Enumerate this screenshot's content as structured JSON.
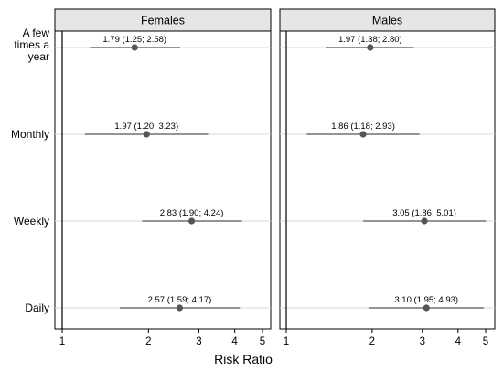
{
  "chart_data": {
    "type": "forest",
    "xlabel": "Risk Ratio",
    "x_scale": "log",
    "xlim": [
      0.95,
      5.25
    ],
    "x_ticks": [
      1,
      2,
      3,
      4,
      5
    ],
    "x_tick_labels": [
      "1",
      "2",
      "3",
      "4",
      "5"
    ],
    "categories": [
      "A few times a year",
      "Monthly",
      "Weekly",
      "Daily"
    ],
    "category_label_lines": [
      [
        "A few",
        "times a",
        "year"
      ],
      [
        "Monthly"
      ],
      [
        "Weekly"
      ],
      [
        "Daily"
      ]
    ],
    "panels": [
      {
        "title": "Females",
        "estimates": [
          {
            "rr": 1.79,
            "lo": 1.25,
            "hi": 2.58,
            "label": "1.79 (1.25; 2.58)"
          },
          {
            "rr": 1.97,
            "lo": 1.2,
            "hi": 3.23,
            "label": "1.97 (1.20; 3.23)"
          },
          {
            "rr": 2.83,
            "lo": 1.9,
            "hi": 4.24,
            "label": "2.83 (1.90; 4.24)"
          },
          {
            "rr": 2.57,
            "lo": 1.59,
            "hi": 4.17,
            "label": "2.57 (1.59; 4.17)"
          }
        ]
      },
      {
        "title": "Males",
        "estimates": [
          {
            "rr": 1.97,
            "lo": 1.38,
            "hi": 2.8,
            "label": "1.97 (1.38; 2.80)"
          },
          {
            "rr": 1.86,
            "lo": 1.18,
            "hi": 2.93,
            "label": "1.86 (1.18; 2.93)"
          },
          {
            "rr": 3.05,
            "lo": 1.86,
            "hi": 5.01,
            "label": "3.05 (1.86; 5.01)"
          },
          {
            "rr": 3.1,
            "lo": 1.95,
            "hi": 4.93,
            "label": "3.10 (1.95; 4.93)"
          }
        ]
      }
    ],
    "reference_line": 1,
    "grid": "horizontal",
    "colors": {
      "point": "#555555",
      "ci_line": "#555555",
      "grid": "#d8d8d8",
      "header_fill": "#e6e6e6"
    }
  }
}
